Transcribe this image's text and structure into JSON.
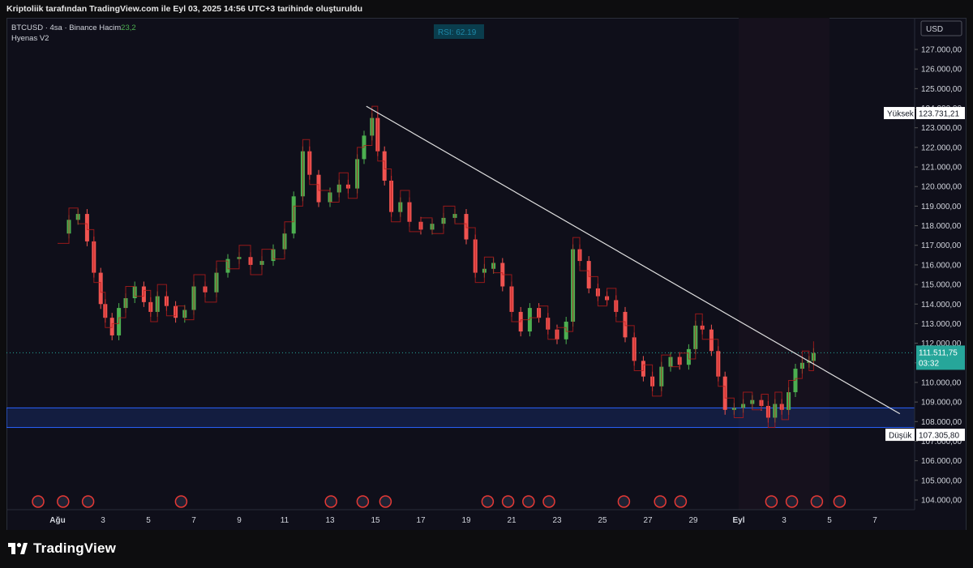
{
  "header": {
    "caption": "Kriptoliik tarafından TradingView.com ile Eyl 03, 2025 14:56 UTC+3 tarihinde oluşturuldu"
  },
  "legend": {
    "symbol": "BTCUSD · 4sa · Binance",
    "volume_label": "Hacim",
    "volume_value": "23,2",
    "indicator": "Hyenas V2",
    "rsi_badge": "RSI: 62.19"
  },
  "price_axis": {
    "currency": "USD",
    "high_label": "Yüksek",
    "high_value": "123.731,21",
    "low_label": "Düşük",
    "low_value": "107.305,80",
    "last_price": "111.511,75",
    "countdown": "03:32"
  },
  "footer": {
    "brand": "TradingView"
  },
  "colors": {
    "background": "#0f0f1a",
    "up": "#26a69a",
    "up_bright": "#4caf50",
    "down": "#ef5350",
    "trendline": "#e0e0e0",
    "support_zone": "#1e3a8a",
    "last_price_badge": "#26a69a"
  },
  "chart_data": {
    "type": "line",
    "title": "BTCUSD · 4sa · Binance",
    "xlabel": "",
    "ylabel": "USD",
    "x_ticks": [
      "Ağu",
      "3",
      "5",
      "7",
      "9",
      "11",
      "13",
      "15",
      "17",
      "19",
      "21",
      "23",
      "25",
      "27",
      "29",
      "Eyl",
      "3",
      "5",
      "7"
    ],
    "y_ticks": [
      "104.000,00",
      "105.000,00",
      "106.000,00",
      "107.000,00",
      "108.000,00",
      "109.000,00",
      "110.000,00",
      "111.000,00",
      "112.000,00",
      "113.000,00",
      "114.000,00",
      "115.000,00",
      "116.000,00",
      "117.000,00",
      "118.000,00",
      "119.000,00",
      "120.000,00",
      "121.000,00",
      "122.000,00",
      "123.000,00",
      "124.000,00",
      "125.000,00",
      "126.000,00",
      "127.000,00"
    ],
    "ylim": [
      103500,
      128500
    ],
    "series": [
      {
        "values": [
          {
            "d": 0.0,
            "p": 117600
          },
          {
            "d": 0.5,
            "p": 118300
          },
          {
            "d": 0.9,
            "p": 118600
          },
          {
            "d": 1.3,
            "p": 117200
          },
          {
            "d": 1.6,
            "p": 115600
          },
          {
            "d": 1.9,
            "p": 114000
          },
          {
            "d": 2.1,
            "p": 113300
          },
          {
            "d": 2.4,
            "p": 112400
          },
          {
            "d": 2.7,
            "p": 113800
          },
          {
            "d": 3.0,
            "p": 114300
          },
          {
            "d": 3.4,
            "p": 114900
          },
          {
            "d": 3.8,
            "p": 114100
          },
          {
            "d": 4.1,
            "p": 113600
          },
          {
            "d": 4.4,
            "p": 114400
          },
          {
            "d": 4.8,
            "p": 113900
          },
          {
            "d": 5.2,
            "p": 113300
          },
          {
            "d": 5.6,
            "p": 113700
          },
          {
            "d": 6.0,
            "p": 114900
          },
          {
            "d": 6.5,
            "p": 114600
          },
          {
            "d": 7.0,
            "p": 115600
          },
          {
            "d": 7.5,
            "p": 116300
          },
          {
            "d": 8.0,
            "p": 116400
          },
          {
            "d": 8.5,
            "p": 116000
          },
          {
            "d": 9.0,
            "p": 116200
          },
          {
            "d": 9.5,
            "p": 116800
          },
          {
            "d": 10.0,
            "p": 117600
          },
          {
            "d": 10.4,
            "p": 119500
          },
          {
            "d": 10.8,
            "p": 121800
          },
          {
            "d": 11.1,
            "p": 120600
          },
          {
            "d": 11.5,
            "p": 119200
          },
          {
            "d": 12.0,
            "p": 119700
          },
          {
            "d": 12.4,
            "p": 120100
          },
          {
            "d": 12.8,
            "p": 119900
          },
          {
            "d": 13.2,
            "p": 121400
          },
          {
            "d": 13.5,
            "p": 122600
          },
          {
            "d": 13.85,
            "p": 123500
          },
          {
            "d": 14.1,
            "p": 121800
          },
          {
            "d": 14.4,
            "p": 120300
          },
          {
            "d": 14.7,
            "p": 118700
          },
          {
            "d": 15.1,
            "p": 119200
          },
          {
            "d": 15.5,
            "p": 118200
          },
          {
            "d": 16.0,
            "p": 117800
          },
          {
            "d": 16.5,
            "p": 118100
          },
          {
            "d": 17.0,
            "p": 118400
          },
          {
            "d": 17.5,
            "p": 118600
          },
          {
            "d": 18.0,
            "p": 117300
          },
          {
            "d": 18.4,
            "p": 115600
          },
          {
            "d": 18.8,
            "p": 115800
          },
          {
            "d": 19.2,
            "p": 116100
          },
          {
            "d": 19.6,
            "p": 114900
          },
          {
            "d": 20.0,
            "p": 113600
          },
          {
            "d": 20.4,
            "p": 112600
          },
          {
            "d": 20.8,
            "p": 113800
          },
          {
            "d": 21.2,
            "p": 113300
          },
          {
            "d": 21.6,
            "p": 112700
          },
          {
            "d": 22.0,
            "p": 112200
          },
          {
            "d": 22.4,
            "p": 113100
          },
          {
            "d": 22.7,
            "p": 116800
          },
          {
            "d": 23.0,
            "p": 116200
          },
          {
            "d": 23.4,
            "p": 114800
          },
          {
            "d": 23.8,
            "p": 114400
          },
          {
            "d": 24.2,
            "p": 114200
          },
          {
            "d": 24.6,
            "p": 113600
          },
          {
            "d": 25.0,
            "p": 112300
          },
          {
            "d": 25.4,
            "p": 111100
          },
          {
            "d": 25.8,
            "p": 110300
          },
          {
            "d": 26.2,
            "p": 109800
          },
          {
            "d": 26.6,
            "p": 110800
          },
          {
            "d": 27.0,
            "p": 111300
          },
          {
            "d": 27.4,
            "p": 110900
          },
          {
            "d": 27.8,
            "p": 111700
          },
          {
            "d": 28.1,
            "p": 112900
          },
          {
            "d": 28.4,
            "p": 112700
          },
          {
            "d": 28.8,
            "p": 111600
          },
          {
            "d": 29.1,
            "p": 110300
          },
          {
            "d": 29.4,
            "p": 108600
          },
          {
            "d": 29.8,
            "p": 108700
          },
          {
            "d": 30.2,
            "p": 108900
          },
          {
            "d": 30.6,
            "p": 109100
          },
          {
            "d": 31.0,
            "p": 108800
          },
          {
            "d": 31.3,
            "p": 108200
          },
          {
            "d": 31.6,
            "p": 108900
          },
          {
            "d": 31.9,
            "p": 108600
          },
          {
            "d": 32.2,
            "p": 109500
          },
          {
            "d": 32.5,
            "p": 110700
          },
          {
            "d": 32.8,
            "p": 111000
          },
          {
            "d": 33.1,
            "p": 111100
          },
          {
            "d": 33.3,
            "p": 111500
          }
        ]
      }
    ],
    "trendline": {
      "from": {
        "d": 13.6,
        "p": 124100
      },
      "to": {
        "d": 37.1,
        "p": 108400
      }
    },
    "support_zone": [
      107700,
      108700
    ],
    "high": 123731.21,
    "low": 107305.8,
    "last": 111511.75
  }
}
